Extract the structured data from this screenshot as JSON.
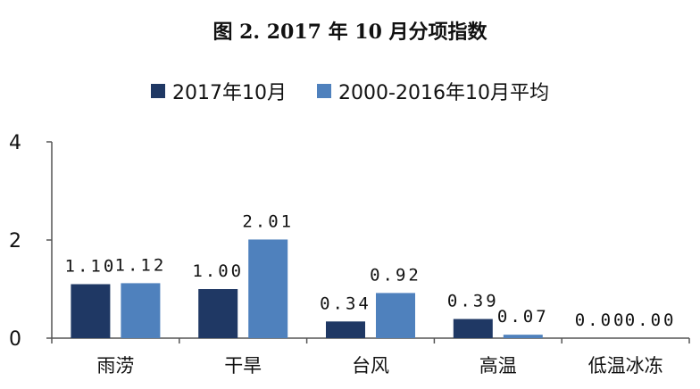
{
  "colors": {
    "series1": "#1f3864",
    "series2": "#4f81bd",
    "axis": "#555555"
  },
  "chart_data": {
    "type": "bar",
    "title": "图 2. 2017 年 10 月分项指数",
    "categories": [
      "雨涝",
      "干旱",
      "台风",
      "高温",
      "低温冰冻"
    ],
    "series": [
      {
        "name": "2017年10月",
        "values": [
          1.1,
          1.0,
          0.34,
          0.39,
          0.0
        ],
        "labels": [
          "1.10",
          "1.00",
          "0.34",
          "0.39",
          "0.00"
        ]
      },
      {
        "name": "2000-2016年10月平均",
        "values": [
          1.12,
          2.01,
          0.92,
          0.07,
          0.0
        ],
        "labels": [
          "1.12",
          "2.01",
          "0.92",
          "0.07",
          "0.00"
        ]
      }
    ],
    "ylim": [
      0,
      4
    ],
    "yticks": [
      "0",
      "2",
      "4"
    ],
    "legend": "top",
    "grid": false
  }
}
